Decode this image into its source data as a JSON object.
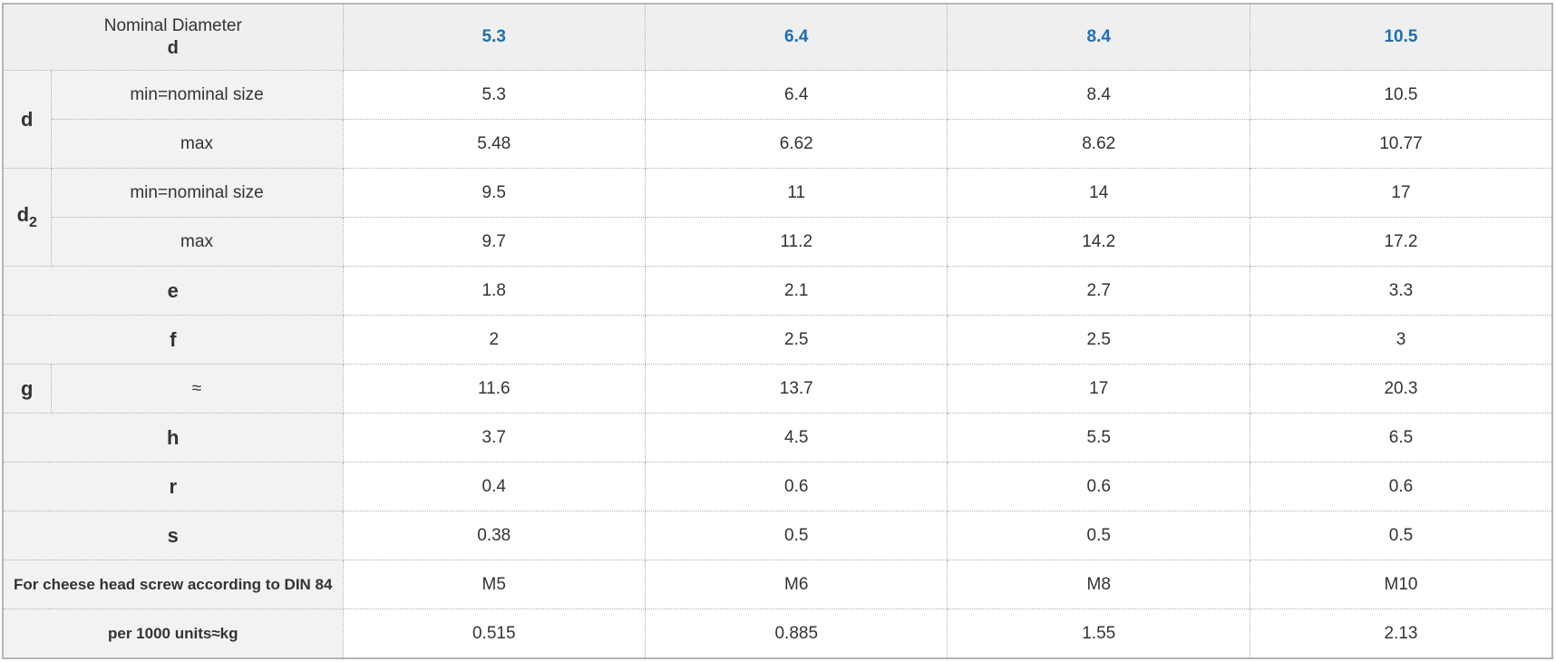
{
  "header": {
    "label": "Nominal Diameter",
    "symbol": "d",
    "columns": [
      "5.3",
      "6.4",
      "8.4",
      "10.5"
    ]
  },
  "colors": {
    "column_header": "#1a6fb5",
    "label_bg": "#f2f2f2",
    "header_label_bg": "#dcdcdc"
  },
  "rows": {
    "d": {
      "symbol": "d",
      "min": {
        "label": "min=nominal size",
        "values": [
          "5.3",
          "6.4",
          "8.4",
          "10.5"
        ]
      },
      "max": {
        "label": "max",
        "values": [
          "5.48",
          "6.62",
          "8.62",
          "10.77"
        ]
      }
    },
    "d2": {
      "symbol": "d",
      "subscript": "2",
      "min": {
        "label": "min=nominal size",
        "values": [
          "9.5",
          "11",
          "14",
          "17"
        ]
      },
      "max": {
        "label": "max",
        "values": [
          "9.7",
          "11.2",
          "14.2",
          "17.2"
        ]
      }
    },
    "e": {
      "symbol": "e",
      "values": [
        "1.8",
        "2.1",
        "2.7",
        "3.3"
      ]
    },
    "f": {
      "symbol": "f",
      "values": [
        "2",
        "2.5",
        "2.5",
        "3"
      ]
    },
    "g": {
      "symbol": "g",
      "sub_label": "≈",
      "values": [
        "11.6",
        "13.7",
        "17",
        "20.3"
      ]
    },
    "h": {
      "symbol": "h",
      "values": [
        "3.7",
        "4.5",
        "5.5",
        "6.5"
      ]
    },
    "r": {
      "symbol": "r",
      "values": [
        "0.4",
        "0.6",
        "0.6",
        "0.6"
      ]
    },
    "s": {
      "symbol": "s",
      "values": [
        "0.38",
        "0.5",
        "0.5",
        "0.5"
      ]
    },
    "screw": {
      "label": "For cheese head screw according to DIN 84",
      "values": [
        "M5",
        "M6",
        "M8",
        "M10"
      ]
    },
    "weight": {
      "label": "per 1000 units≈kg",
      "values": [
        "0.515",
        "0.885",
        "1.55",
        "2.13"
      ]
    }
  }
}
